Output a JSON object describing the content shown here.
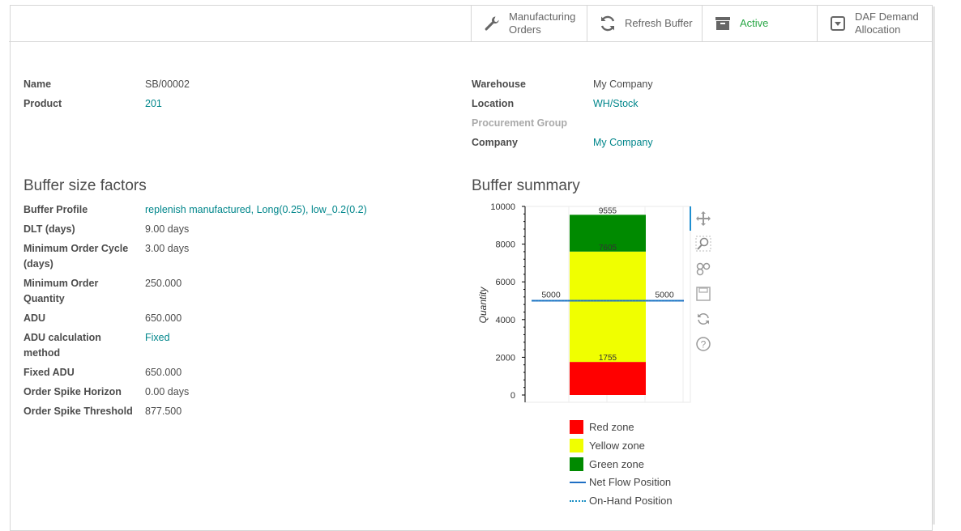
{
  "button_box": {
    "manufacturing_orders": "Manufacturing\nOrders",
    "refresh_buffer": "Refresh Buffer",
    "active": "Active",
    "daf_demand_allocation": "DAF Demand\nAllocation"
  },
  "header_fields": {
    "name_label": "Name",
    "name_value": "SB/00002",
    "product_label": "Product",
    "product_value": "201",
    "warehouse_label": "Warehouse",
    "warehouse_value": "My Company",
    "location_label": "Location",
    "location_value": "WH/Stock",
    "procurement_group_label": "Procurement Group",
    "company_label": "Company",
    "company_value": "My Company"
  },
  "buffer_factors": {
    "title": "Buffer size factors",
    "rows": [
      {
        "label": "Buffer Profile",
        "value": "replenish manufactured, Long(0.25), low_0.2(0.2)",
        "link": true
      },
      {
        "label": "DLT (days)",
        "value": "9.00 days",
        "link": false
      },
      {
        "label": "Minimum Order Cycle (days)",
        "value": "3.00 days",
        "link": false
      },
      {
        "label": "Minimum Order Quantity",
        "value": "250.000",
        "link": false
      },
      {
        "label": "ADU",
        "value": "650.000",
        "link": false
      },
      {
        "label": "ADU calculation method",
        "value": "Fixed",
        "link": true
      },
      {
        "label": "Fixed ADU",
        "value": "650.000",
        "link": false
      },
      {
        "label": "Order Spike Horizon",
        "value": "0.00 days",
        "link": false
      },
      {
        "label": "Order Spike Threshold",
        "value": "877.500",
        "link": false
      }
    ]
  },
  "buffer_summary": {
    "title": "Buffer summary"
  },
  "chart_data": {
    "type": "bar",
    "stacked": true,
    "ylabel": "Quantity",
    "xlabel": "",
    "ylim": [
      0,
      10000
    ],
    "yticks": [
      "0",
      "2000",
      "4000",
      "6000",
      "8000",
      "10000"
    ],
    "series": [
      {
        "name": "Red zone",
        "bottom": 0,
        "top": 1755,
        "color": "#ff0000"
      },
      {
        "name": "Yellow zone",
        "bottom": 1755,
        "top": 7605,
        "color": "#f0ff00"
      },
      {
        "name": "Green zone",
        "bottom": 7605,
        "top": 9555,
        "color": "#008a00"
      }
    ],
    "bar_labels": [
      "1755",
      "7605",
      "9555"
    ],
    "lines": [
      {
        "name": "Net Flow Position",
        "value": 5000,
        "style": "solid",
        "color": "#1f6fc4"
      },
      {
        "name": "On-Hand Position",
        "value": 5000,
        "style": "dotted",
        "color": "#1a8fc4"
      }
    ],
    "line_labels": [
      "5000",
      "5000"
    ],
    "legend_position": "bottom"
  },
  "colors": {
    "link": "#00868b",
    "active": "#28a745",
    "red_zone": "#ff0000",
    "yellow_zone": "#f0ff00",
    "green_zone": "#008a00"
  },
  "icons": [
    "wrench-icon",
    "refresh-icon",
    "archive-icon",
    "dropdown-box-icon",
    "pan-tool-icon",
    "zoom-tool-icon",
    "hover-tool-icon",
    "save-tool-icon",
    "reset-tool-icon",
    "help-tool-icon"
  ]
}
